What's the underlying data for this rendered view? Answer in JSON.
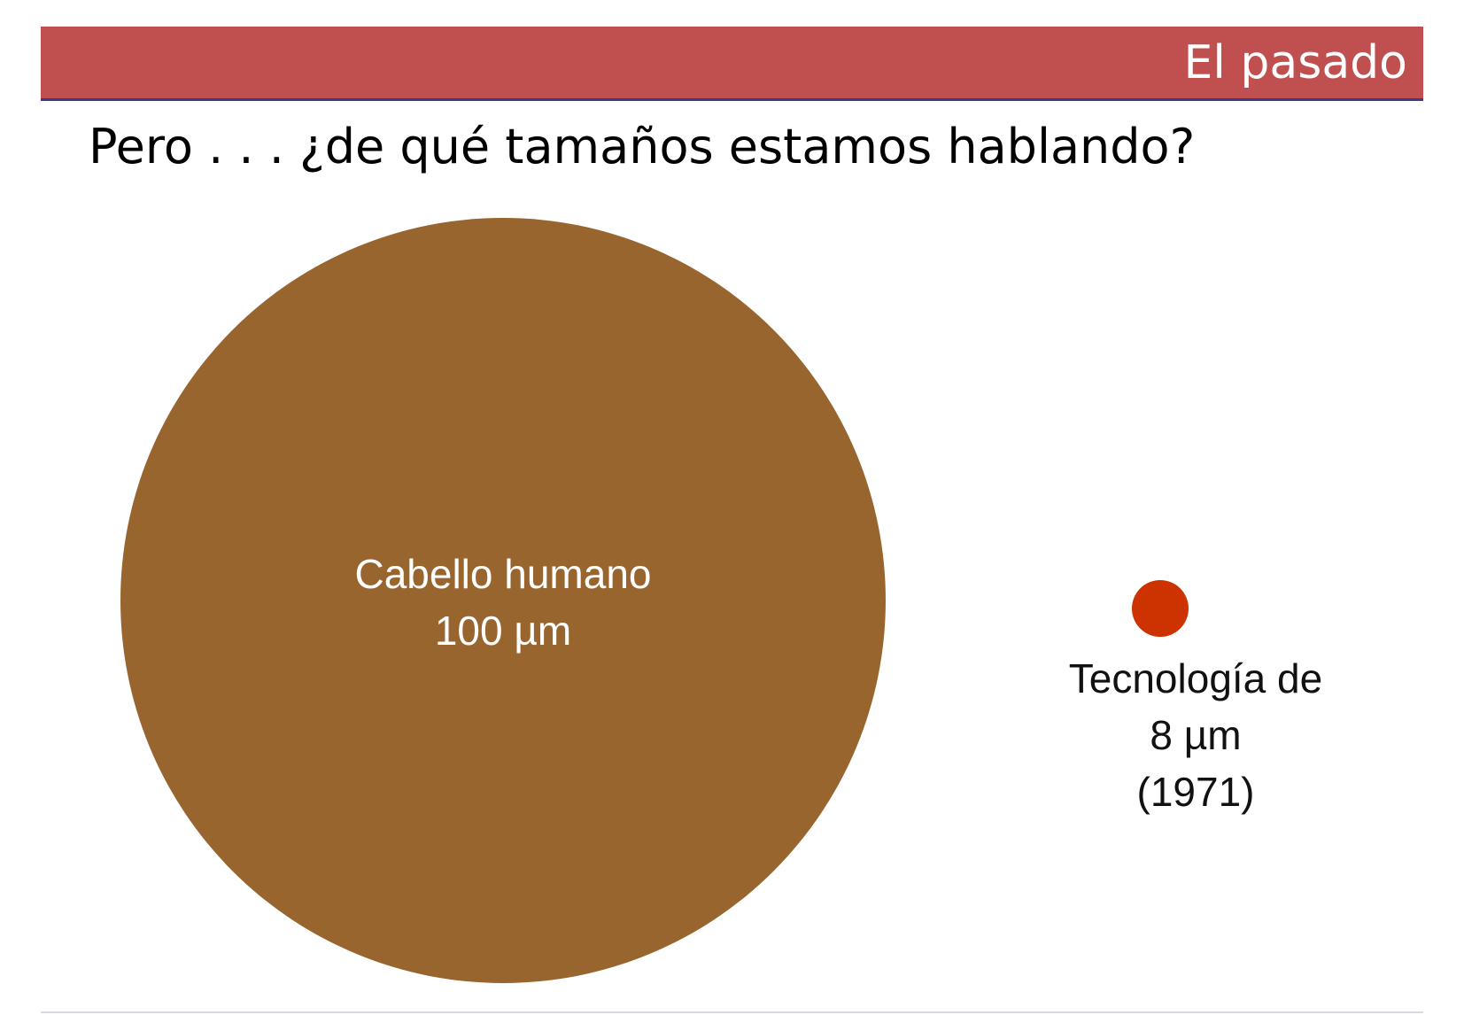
{
  "header": {
    "title": "El pasado",
    "bar_color": "#c05050",
    "underline_color": "#3a3a8c"
  },
  "subtitle": "Pero . . . ¿de qué tamaños estamos hablando?",
  "items": [
    {
      "id": "hair",
      "label_line1": "Cabello humano",
      "label_line2": "100 µm",
      "size_um": 100,
      "color": "#98652f"
    },
    {
      "id": "tech",
      "label_line1": "Tecnología de",
      "label_line2": "8 µm",
      "label_line3": "(1971)",
      "size_um": 8,
      "color": "#cc3300"
    }
  ]
}
